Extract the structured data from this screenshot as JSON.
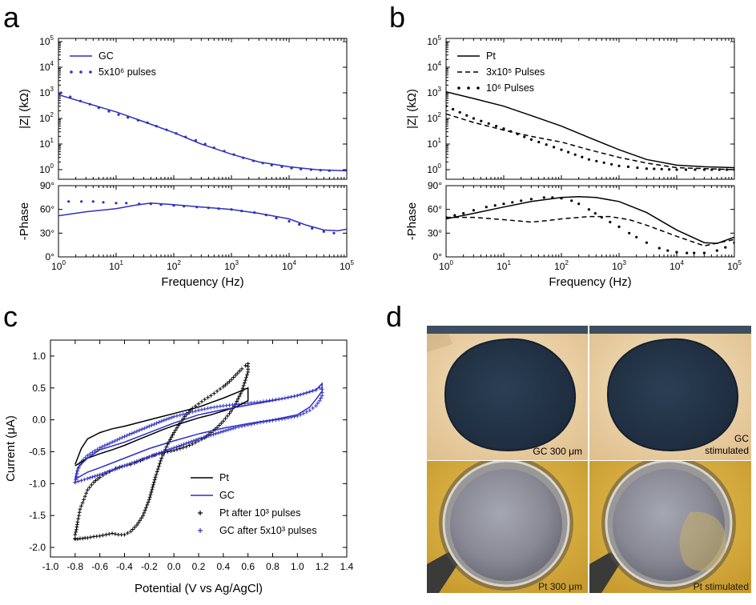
{
  "panels": {
    "a": "a",
    "b": "b",
    "c": "c",
    "d": "d"
  },
  "colors": {
    "gc": "#2f2fc0",
    "pt": "#000000"
  },
  "chart_data": [
    {
      "id": "a-impedance",
      "type": "line",
      "panel": "a",
      "xscale": "log",
      "xlim": [
        1,
        100000
      ],
      "yscale": "log",
      "ylim": [
        0.5,
        100000
      ],
      "ylabel": "|Z| (kΩ)",
      "series": [
        {
          "name": "GC",
          "style": "solid",
          "color": "#2f2fc0",
          "x": [
            1,
            3,
            10,
            30,
            100,
            300,
            1000,
            3000,
            10000,
            30000,
            100000
          ],
          "y": [
            850,
            400,
            180,
            75,
            28,
            10,
            4,
            2,
            1.3,
            1,
            0.9
          ]
        },
        {
          "name": "5x10⁶ pulses",
          "style": "dots",
          "color": "#2f2fc0",
          "x": [
            1.1,
            1.6,
            2.4,
            3.5,
            5,
            7.5,
            11,
            16,
            24,
            35,
            50,
            75,
            110,
            160,
            240,
            350,
            500,
            750,
            1100,
            1600,
            2400,
            3500,
            5000,
            7500,
            11000,
            16000,
            24000,
            35000,
            50000
          ],
          "y": [
            1000,
            700,
            480,
            360,
            260,
            190,
            140,
            110,
            85,
            68,
            50,
            36,
            26,
            19,
            14,
            10,
            7.2,
            5.3,
            3.9,
            2.9,
            2.2,
            1.8,
            1.5,
            1.3,
            1.15,
            1.05,
            1,
            0.95,
            0.92
          ]
        }
      ]
    },
    {
      "id": "a-phase",
      "type": "line",
      "panel": "a",
      "xscale": "log",
      "xlim": [
        1,
        100000
      ],
      "ylim": [
        0,
        90
      ],
      "xlabel": "Frequency (Hz)",
      "ylabel": "-Phase",
      "yticks": [
        "0°",
        "30°",
        "60°",
        "90°"
      ],
      "series": [
        {
          "name": "GC",
          "style": "solid",
          "color": "#2f2fc0",
          "x": [
            1,
            3,
            10,
            20,
            40,
            100,
            300,
            1000,
            3000,
            10000,
            20000,
            40000,
            70000,
            100000
          ],
          "y": [
            52,
            57,
            61,
            65,
            68,
            66,
            63,
            60,
            55,
            48,
            40,
            34,
            33,
            35
          ]
        },
        {
          "name": "5x10⁶ pulses",
          "style": "dots",
          "color": "#2f2fc0",
          "x": [
            1.5,
            2.5,
            4,
            6,
            10,
            15,
            25,
            40,
            60,
            100,
            150,
            250,
            400,
            600,
            1000,
            1500,
            2500,
            4000,
            6000,
            10000,
            15000,
            25000,
            40000,
            60000
          ],
          "y": [
            70,
            70,
            70,
            69,
            68,
            68,
            67,
            67,
            66,
            65,
            64,
            63,
            62,
            61,
            60,
            58,
            56,
            53,
            49,
            45,
            41,
            36,
            32,
            30
          ]
        }
      ]
    },
    {
      "id": "b-impedance",
      "type": "line",
      "panel": "b",
      "xscale": "log",
      "xlim": [
        1,
        100000
      ],
      "yscale": "log",
      "ylim": [
        0.5,
        100000
      ],
      "ylabel": "|Z| (kΩ)",
      "series": [
        {
          "name": "Pt",
          "style": "solid",
          "color": "#000000",
          "x": [
            1,
            3,
            10,
            30,
            100,
            300,
            1000,
            3000,
            10000,
            30000,
            100000
          ],
          "y": [
            1100,
            600,
            300,
            130,
            50,
            18,
            6,
            2.5,
            1.5,
            1.3,
            1.2
          ]
        },
        {
          "name": "3x10⁵ Pulses",
          "style": "dashed",
          "color": "#000000",
          "x": [
            1,
            3,
            10,
            30,
            100,
            300,
            1000,
            3000,
            10000,
            30000,
            100000
          ],
          "y": [
            150,
            70,
            35,
            20,
            12,
            6,
            3,
            1.8,
            1.2,
            1.1,
            1.0
          ]
        },
        {
          "name": "10⁶ Pulses",
          "style": "dots",
          "color": "#000000",
          "x": [
            1,
            3,
            10,
            30,
            100,
            300,
            1000,
            3000,
            10000,
            30000,
            100000
          ],
          "y": [
            300,
            100,
            40,
            15,
            6,
            2.5,
            1.4,
            1.1,
            1.0,
            1.0,
            1.0
          ]
        }
      ]
    },
    {
      "id": "b-phase",
      "type": "line",
      "panel": "b",
      "xscale": "log",
      "xlim": [
        1,
        100000
      ],
      "ylim": [
        0,
        90
      ],
      "xlabel": "Frequency (Hz)",
      "ylabel": "-Phase",
      "yticks": [
        "0°",
        "30°",
        "60°",
        "90°"
      ],
      "series": [
        {
          "name": "Pt",
          "style": "solid",
          "color": "#000000",
          "x": [
            1,
            3,
            10,
            30,
            100,
            200,
            400,
            1000,
            3000,
            10000,
            30000,
            50000,
            100000
          ],
          "y": [
            48,
            55,
            63,
            70,
            75,
            76,
            75,
            70,
            56,
            34,
            18,
            17,
            25
          ]
        },
        {
          "name": "3x10⁵ Pulses",
          "style": "dashed",
          "color": "#000000",
          "x": [
            1,
            3,
            10,
            30,
            60,
            100,
            300,
            700,
            1500,
            3000,
            10000,
            30000,
            100000
          ],
          "y": [
            50,
            50,
            47,
            44,
            46,
            48,
            51,
            51,
            47,
            40,
            26,
            14,
            22
          ]
        },
        {
          "name": "10⁶ Pulses",
          "style": "dots",
          "color": "#000000",
          "x": [
            1,
            2,
            3,
            5,
            10,
            20,
            30,
            50,
            70,
            100,
            150,
            200,
            300,
            500,
            700,
            1000,
            1500,
            2000,
            3000,
            5000,
            7000,
            10000,
            15000,
            20000,
            30000,
            50000,
            70000,
            100000
          ],
          "y": [
            50,
            55,
            59,
            63,
            67,
            71,
            73,
            75,
            75,
            74,
            71,
            67,
            60,
            50,
            44,
            38,
            30,
            25,
            18,
            11,
            8,
            6,
            5,
            5,
            5,
            8,
            12,
            18
          ]
        }
      ]
    },
    {
      "id": "c-cv",
      "type": "line",
      "panel": "c",
      "xlim": [
        -1.0,
        1.4
      ],
      "ylim": [
        -2.15,
        1.25
      ],
      "xticks": [
        -1.0,
        -0.8,
        -0.6,
        -0.4,
        -0.2,
        0.0,
        0.2,
        0.4,
        0.6,
        0.8,
        1.0,
        1.2,
        1.4
      ],
      "yticks": [
        -2.0,
        -1.5,
        -1.0,
        -0.5,
        0.0,
        0.5,
        1.0
      ],
      "xlabel": "Potential (V vs Ag/AgCl)",
      "ylabel": "Current (μA)",
      "series": [
        {
          "name": "Pt",
          "style": "solid",
          "color": "#000000",
          "x": [
            -0.8,
            -0.75,
            -0.7,
            -0.6,
            -0.5,
            -0.4,
            -0.3,
            -0.2,
            -0.1,
            0.0,
            0.1,
            0.2,
            0.3,
            0.4,
            0.5,
            0.6,
            0.6,
            0.5,
            0.4,
            0.3,
            0.2,
            0.1,
            0.0,
            -0.1,
            -0.2,
            -0.3,
            -0.4,
            -0.5,
            -0.6,
            -0.7,
            -0.8
          ],
          "y": [
            -0.7,
            -0.45,
            -0.3,
            -0.2,
            -0.14,
            -0.1,
            -0.05,
            0.0,
            0.05,
            0.1,
            0.15,
            0.2,
            0.27,
            0.34,
            0.42,
            0.5,
            0.3,
            0.2,
            0.14,
            0.08,
            0.03,
            -0.03,
            -0.09,
            -0.16,
            -0.24,
            -0.32,
            -0.4,
            -0.47,
            -0.53,
            -0.6,
            -0.72
          ]
        },
        {
          "name": "GC",
          "style": "solid",
          "color": "#2f2fc0",
          "x": [
            -0.8,
            -0.78,
            -0.7,
            -0.6,
            -0.4,
            -0.2,
            0.0,
            0.2,
            0.4,
            0.6,
            0.8,
            1.0,
            1.1,
            1.15,
            1.2,
            1.2,
            1.15,
            1.1,
            1.0,
            0.8,
            0.6,
            0.4,
            0.2,
            0.0,
            -0.2,
            -0.4,
            -0.6,
            -0.7,
            -0.8
          ],
          "y": [
            -0.93,
            -0.75,
            -0.6,
            -0.47,
            -0.35,
            -0.2,
            -0.05,
            0.08,
            0.16,
            0.23,
            0.3,
            0.38,
            0.44,
            0.47,
            0.57,
            0.45,
            0.32,
            0.2,
            0.08,
            0.0,
            -0.06,
            -0.13,
            -0.22,
            -0.33,
            -0.45,
            -0.6,
            -0.75,
            -0.82,
            -0.93
          ]
        },
        {
          "name": "Pt after 10³ pulses",
          "style": "plus",
          "color": "#000000",
          "x": [
            -0.8,
            -0.8,
            -0.79,
            -0.78,
            -0.77,
            -0.76,
            -0.74,
            -0.72,
            -0.7,
            -0.65,
            -0.6,
            -0.55,
            -0.5,
            -0.47,
            -0.44,
            -0.42,
            -0.4,
            -0.38,
            -0.35,
            -0.32,
            -0.3,
            -0.27,
            -0.25,
            -0.22,
            -0.2,
            -0.17,
            -0.15,
            -0.12,
            -0.1,
            -0.05,
            0.0,
            0.05,
            0.1,
            0.15,
            0.2,
            0.25,
            0.3,
            0.35,
            0.4,
            0.45,
            0.5,
            0.55,
            0.6,
            0.6,
            0.58,
            0.55,
            0.5,
            0.45,
            0.4,
            0.35,
            0.3,
            0.25,
            0.2,
            0.15,
            0.1,
            0.05,
            0.0,
            -0.05,
            -0.1,
            -0.15,
            -0.2,
            -0.25,
            -0.3,
            -0.35,
            -0.4,
            -0.45,
            -0.5,
            -0.55,
            -0.6,
            -0.65,
            -0.7,
            -0.72,
            -0.74,
            -0.76,
            -0.78,
            -0.8
          ],
          "y": [
            -1.86,
            -1.8,
            -1.72,
            -1.6,
            -1.5,
            -1.4,
            -1.3,
            -1.2,
            -1.1,
            -0.98,
            -0.9,
            -0.84,
            -0.79,
            -0.76,
            -0.74,
            -0.73,
            -0.72,
            -0.71,
            -0.7,
            -0.68,
            -0.66,
            -0.64,
            -0.62,
            -0.6,
            -0.58,
            -0.56,
            -0.55,
            -0.53,
            -0.52,
            -0.5,
            -0.48,
            -0.45,
            -0.42,
            -0.38,
            -0.33,
            -0.28,
            -0.2,
            -0.12,
            -0.02,
            0.1,
            0.25,
            0.45,
            0.75,
            0.88,
            0.85,
            0.8,
            0.7,
            0.6,
            0.52,
            0.45,
            0.38,
            0.32,
            0.25,
            0.18,
            0.08,
            -0.05,
            -0.2,
            -0.38,
            -0.6,
            -0.9,
            -1.25,
            -1.5,
            -1.65,
            -1.75,
            -1.8,
            -1.8,
            -1.78,
            -1.8,
            -1.82,
            -1.83,
            -1.85,
            -1.85,
            -1.86,
            -1.86,
            -1.87,
            -1.87
          ]
        },
        {
          "name": "GC after 5x10³ pulses",
          "style": "plus",
          "color": "#2f2fc0",
          "x": [
            -0.8,
            -0.78,
            -0.75,
            -0.7,
            -0.6,
            -0.5,
            -0.4,
            -0.3,
            -0.2,
            -0.1,
            0.0,
            0.1,
            0.2,
            0.3,
            0.4,
            0.5,
            0.6,
            0.7,
            0.8,
            0.9,
            1.0,
            1.05,
            1.1,
            1.15,
            1.18,
            1.2,
            1.2,
            1.18,
            1.15,
            1.1,
            1.05,
            1.0,
            0.9,
            0.8,
            0.7,
            0.6,
            0.5,
            0.4,
            0.3,
            0.2,
            0.1,
            0.0,
            -0.1,
            -0.2,
            -0.3,
            -0.4,
            -0.5,
            -0.6,
            -0.7,
            -0.75,
            -0.8
          ],
          "y": [
            -0.98,
            -0.8,
            -0.66,
            -0.56,
            -0.44,
            -0.35,
            -0.26,
            -0.18,
            -0.1,
            -0.02,
            0.05,
            0.1,
            0.15,
            0.19,
            0.22,
            0.24,
            0.26,
            0.28,
            0.31,
            0.34,
            0.38,
            0.41,
            0.44,
            0.47,
            0.5,
            0.48,
            0.38,
            0.3,
            0.22,
            0.15,
            0.1,
            0.06,
            0.02,
            -0.01,
            -0.04,
            -0.08,
            -0.12,
            -0.18,
            -0.24,
            -0.3,
            -0.37,
            -0.44,
            -0.51,
            -0.58,
            -0.65,
            -0.72,
            -0.79,
            -0.86,
            -0.92,
            -0.95,
            -0.98
          ]
        }
      ]
    }
  ],
  "photos": {
    "gc_label": "GC 300 μm",
    "gc_stim_line1": "GC",
    "gc_stim_line2": "stimulated",
    "pt_label": "Pt 300 μm",
    "pt_stim_label": "Pt stimulated"
  }
}
